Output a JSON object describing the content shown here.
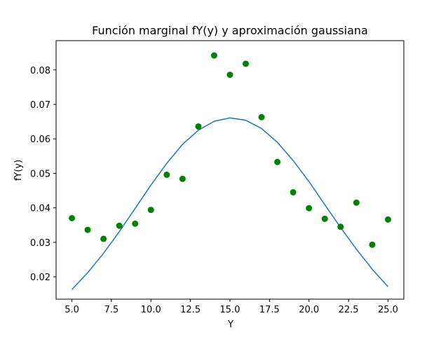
{
  "chart_data": {
    "type": "scatter",
    "title": "Función marginal fY(y) y aproximación gaussiana",
    "xlabel": "Y",
    "ylabel": "fY(y)",
    "xlim": [
      4.0,
      26.0
    ],
    "ylim": [
      0.0135,
      0.0885
    ],
    "xticks": [
      5.0,
      7.5,
      10.0,
      12.5,
      15.0,
      17.5,
      20.0,
      22.5,
      25.0
    ],
    "xtick_labels": [
      "5.0",
      "7.5",
      "10.0",
      "12.5",
      "15.0",
      "17.5",
      "20.0",
      "22.5",
      "25.0"
    ],
    "yticks": [
      0.02,
      0.03,
      0.04,
      0.05,
      0.06,
      0.07,
      0.08
    ],
    "ytick_labels": [
      "0.02",
      "0.03",
      "0.04",
      "0.05",
      "0.06",
      "0.07",
      "0.08"
    ],
    "grid": false,
    "series": [
      {
        "kind": "scatter",
        "color": "#008000",
        "x": [
          5,
          6,
          7,
          8,
          9,
          10,
          11,
          12,
          13,
          14,
          15,
          16,
          17,
          18,
          19,
          20,
          21,
          22,
          23,
          24,
          25
        ],
        "y": [
          0.037,
          0.0336,
          0.031,
          0.0348,
          0.0354,
          0.0394,
          0.0496,
          0.0484,
          0.0636,
          0.0842,
          0.0786,
          0.0818,
          0.0663,
          0.0533,
          0.0445,
          0.0399,
          0.0368,
          0.0345,
          0.0415,
          0.0293,
          0.0366
        ]
      },
      {
        "kind": "line",
        "color": "#1f77b4",
        "x": [
          5,
          6,
          7,
          8,
          9,
          10,
          11,
          12,
          13,
          14,
          15,
          16,
          17,
          18,
          19,
          20,
          21,
          22,
          23,
          24,
          25
        ],
        "y": [
          0.0163,
          0.0212,
          0.0268,
          0.0331,
          0.0398,
          0.0466,
          0.0529,
          0.0584,
          0.0625,
          0.0651,
          0.0661,
          0.0654,
          0.063,
          0.059,
          0.0537,
          0.0476,
          0.0409,
          0.0343,
          0.028,
          0.0222,
          0.0171
        ]
      }
    ]
  }
}
